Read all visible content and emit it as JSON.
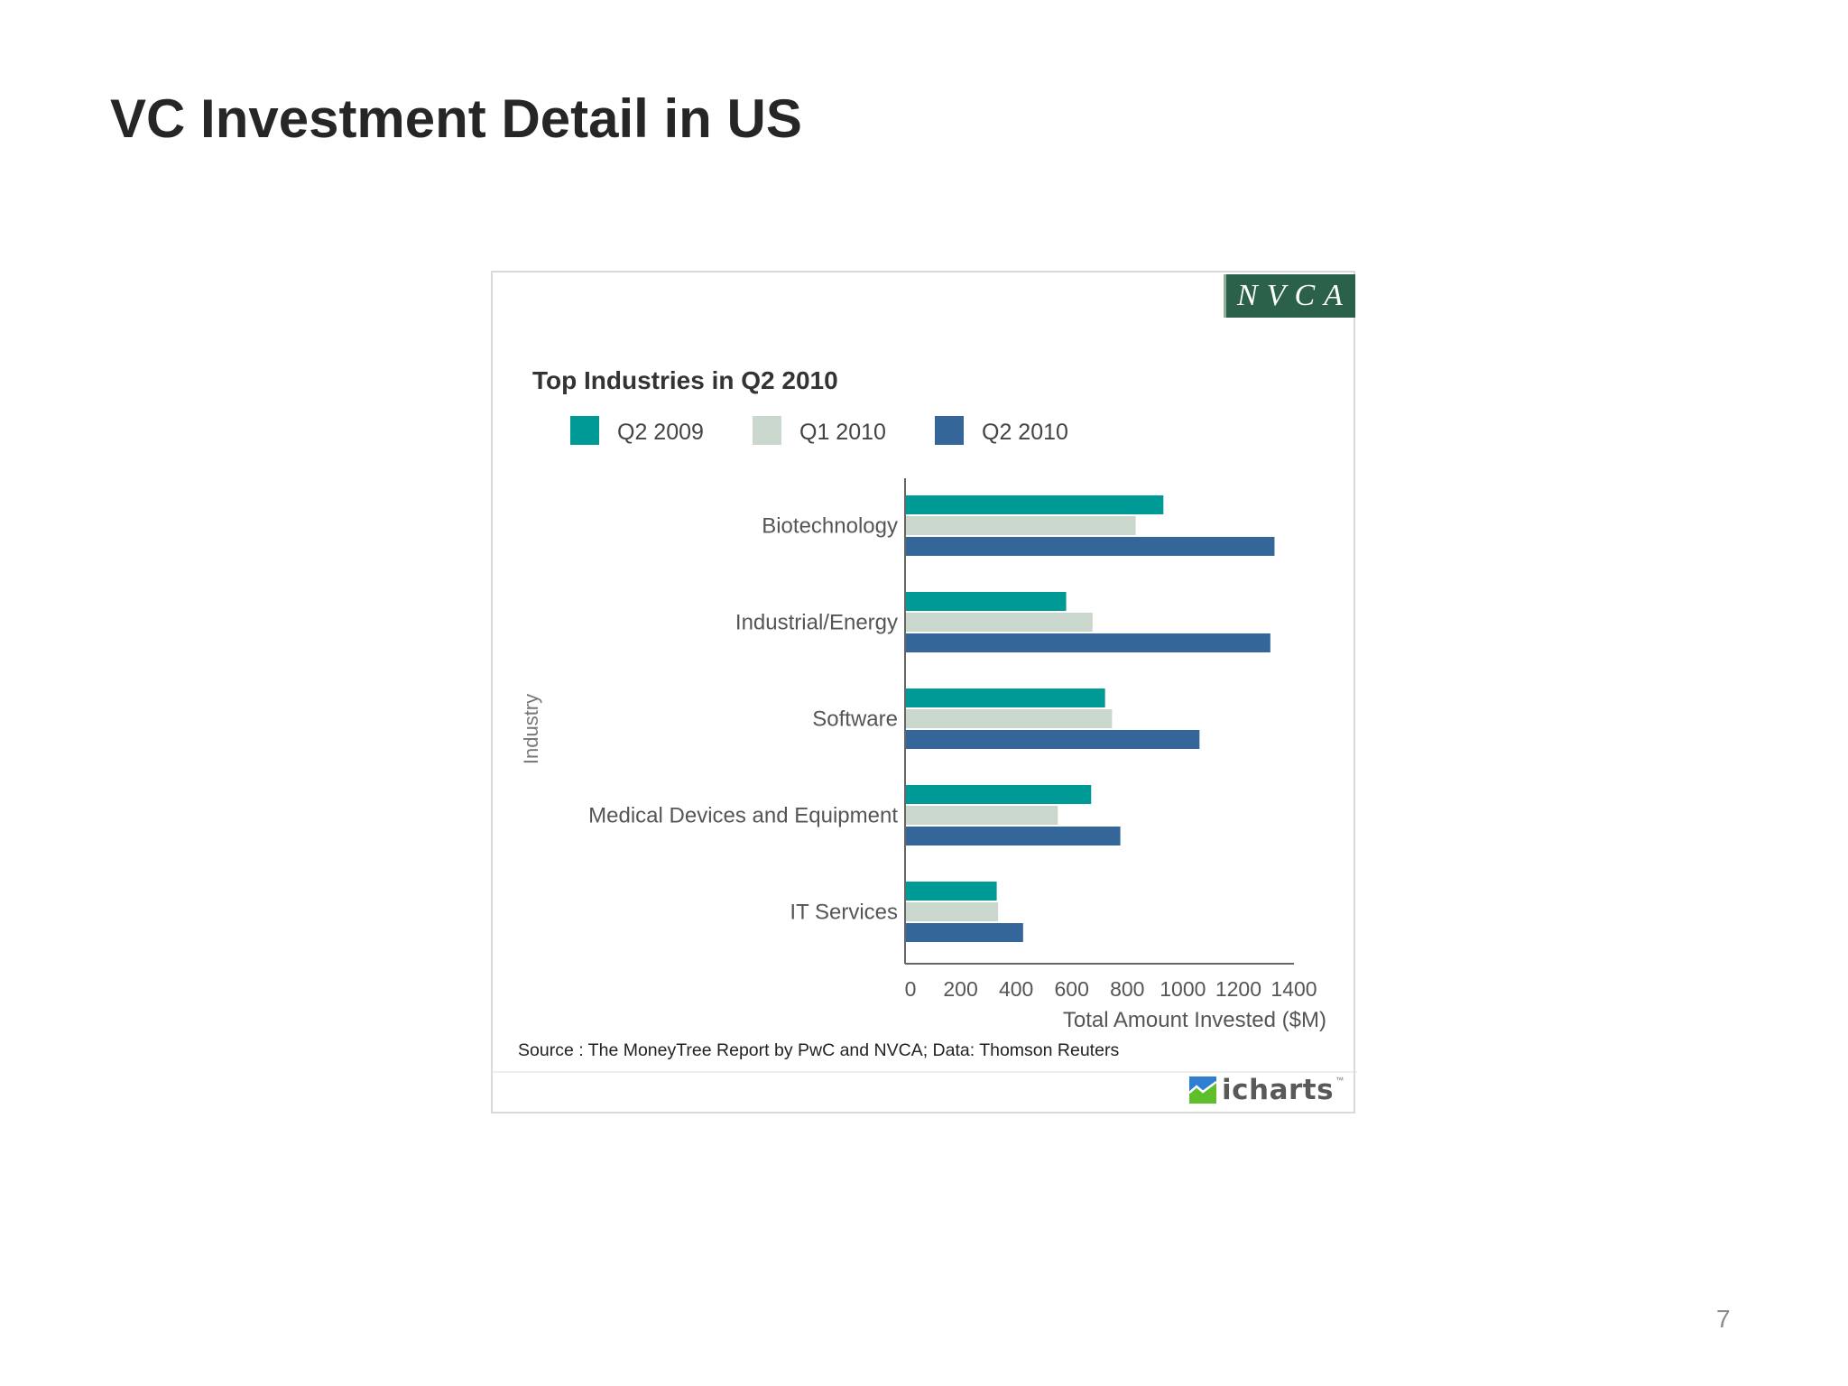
{
  "slide": {
    "title": "VC Investment Detail in US",
    "page_number": "7"
  },
  "logos": {
    "nvca": "NVCA",
    "icharts": "icharts",
    "icharts_tm": "™"
  },
  "colors": {
    "q2_2009": "#009a96",
    "q1_2010": "#c9d7cd",
    "q2_2010": "#356699",
    "nvca_bg": "#2b6049"
  },
  "chart_data": {
    "type": "bar",
    "orientation": "horizontal",
    "title": "Top Industries in Q2 2010",
    "xlabel": "Total Amount Invested ($M)",
    "ylabel": "Industry",
    "categories": [
      "Biotechnology",
      "Industrial/Energy",
      "Software",
      "Medical Devices and Equipment",
      "IT Services"
    ],
    "series": [
      {
        "name": "Q2 2009",
        "color": "#009a96",
        "values": [
          930,
          580,
          720,
          670,
          330
        ]
      },
      {
        "name": "Q1 2010",
        "color": "#c9d7cd",
        "values": [
          830,
          675,
          745,
          550,
          335
        ]
      },
      {
        "name": "Q2 2010",
        "color": "#356699",
        "values": [
          1330,
          1315,
          1060,
          775,
          425
        ]
      }
    ],
    "xlim": [
      0,
      1400
    ],
    "xticks": [
      "0",
      "200",
      "400",
      "600",
      "800",
      "1000",
      "1200",
      "1400"
    ],
    "legend_position": "top",
    "grid": false,
    "source": "Source : The MoneyTree Report by PwC and NVCA; Data: Thomson Reuters"
  }
}
